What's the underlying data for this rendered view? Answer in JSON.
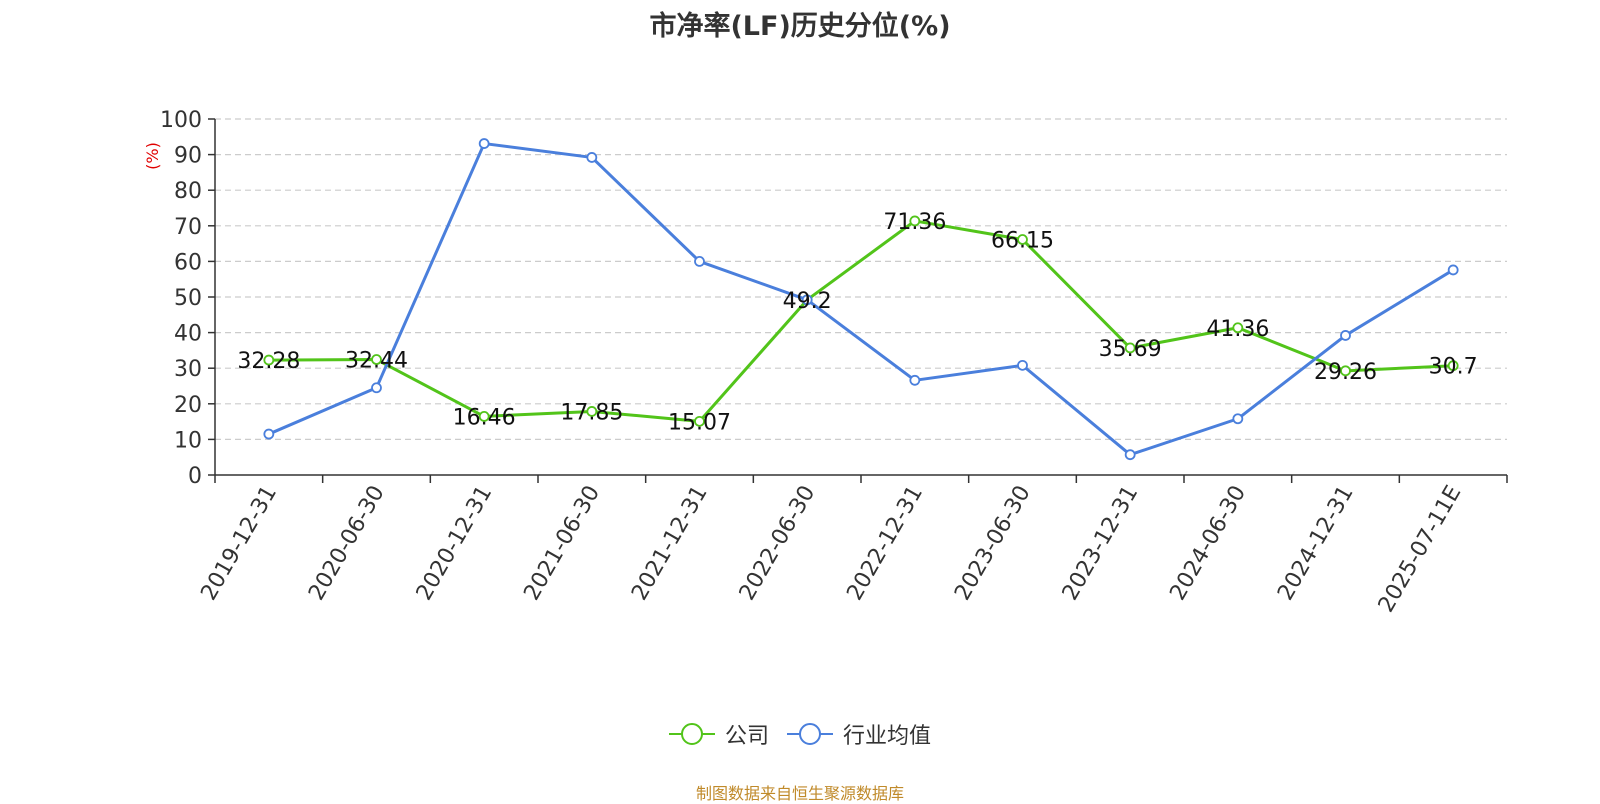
{
  "title": "市净率(LF)历史分位(%)",
  "source": "制图数据来自恒生聚源数据库",
  "chart_data": {
    "type": "line",
    "title": "市净率(LF)历史分位(%)",
    "ylabel": "(%)",
    "xlabel": "",
    "ylim": [
      0,
      100
    ],
    "yticks": [
      0,
      10,
      20,
      30,
      40,
      50,
      60,
      70,
      80,
      90,
      100
    ],
    "grid": true,
    "legend_position": "bottom",
    "categories": [
      "2019-12-31",
      "2020-06-30",
      "2020-12-31",
      "2021-06-30",
      "2021-12-31",
      "2022-06-30",
      "2022-12-31",
      "2023-06-30",
      "2023-12-31",
      "2024-06-30",
      "2024-12-31",
      "2025-07-11E"
    ],
    "series": [
      {
        "name": "公司",
        "color": "#52c41a",
        "values": [
          32.28,
          32.44,
          16.46,
          17.85,
          15.07,
          49.2,
          71.36,
          66.15,
          35.69,
          41.36,
          29.26,
          30.7
        ],
        "labels": [
          "32.28",
          "32.44",
          "16.46",
          "17.85",
          "15.07",
          "49.2",
          "71.36",
          "66.15",
          "35.69",
          "41.36",
          "29.26",
          "30.7"
        ]
      },
      {
        "name": "行业均值",
        "color": "#4a7fdc",
        "values": [
          11.5,
          24.5,
          93.1,
          89.2,
          60.0,
          49.2,
          26.6,
          30.8,
          5.7,
          15.8,
          39.2,
          57.6
        ]
      }
    ]
  }
}
